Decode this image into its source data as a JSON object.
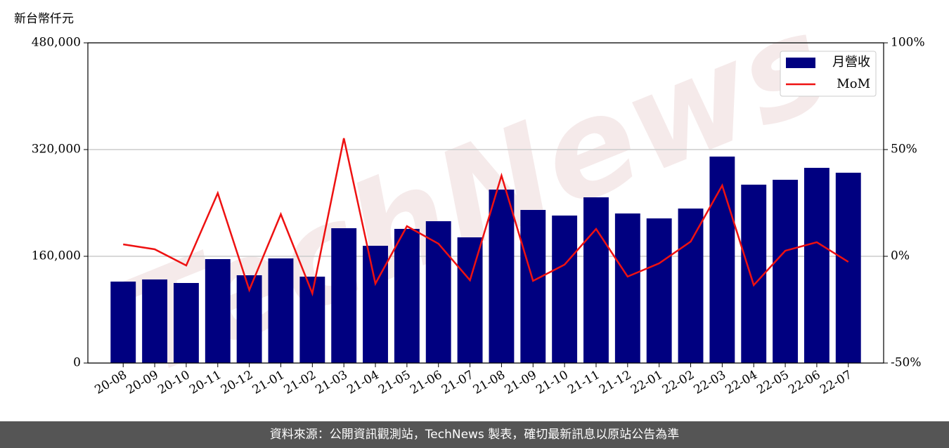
{
  "chart_data": {
    "type": "bar-line",
    "y_label": "新台幣仟元",
    "categories": [
      "20-08",
      "20-09",
      "20-10",
      "20-11",
      "20-12",
      "21-01",
      "21-02",
      "21-03",
      "21-04",
      "21-05",
      "21-06",
      "21-07",
      "21-08",
      "21-09",
      "21-10",
      "21-11",
      "21-12",
      "22-01",
      "22-02",
      "22-03",
      "22-04",
      "22-05",
      "22-06",
      "22-07"
    ],
    "series": [
      {
        "name": "月營收",
        "type": "bar",
        "axis": "y",
        "color": "#000080",
        "values": [
          122100,
          125300,
          120000,
          155800,
          131600,
          156800,
          129500,
          202100,
          175800,
          201100,
          212600,
          188400,
          260000,
          229500,
          221100,
          248400,
          224200,
          216800,
          231600,
          309500,
          267400,
          274700,
          292600,
          285300
        ]
      },
      {
        "name": "MoM",
        "type": "line",
        "axis": "y2",
        "color": "#ee1111",
        "values": [
          5.6,
          3.3,
          -4.3,
          29.6,
          -15.8,
          19.7,
          -17.4,
          55.3,
          -12.8,
          14.1,
          5.9,
          -11.2,
          37.8,
          -11.5,
          -3.9,
          12.8,
          -9.5,
          -3.3,
          6.9,
          33.2,
          -13.5,
          2.6,
          6.6,
          -2.6
        ]
      }
    ],
    "ylim": [
      0,
      480000
    ],
    "yticks": [
      0,
      {
        "value": 160000,
        "label": "160,000"
      },
      {
        "value": 320000,
        "label": "320,000"
      },
      {
        "value": 480000,
        "label": "480,000"
      }
    ],
    "y2lim": [
      -50,
      100
    ],
    "y2ticks": [
      {
        "value": -50,
        "label": "-50%"
      },
      {
        "value": 0,
        "label": "0%"
      },
      {
        "value": 50,
        "label": "50%"
      },
      {
        "value": 100,
        "label": "100%"
      }
    ],
    "grid": true,
    "legend": "upper right",
    "watermark": "TechNews",
    "footer": "資料來源：公開資訊觀測站，TechNews 製表，確切最新訊息以原站公告為準"
  }
}
